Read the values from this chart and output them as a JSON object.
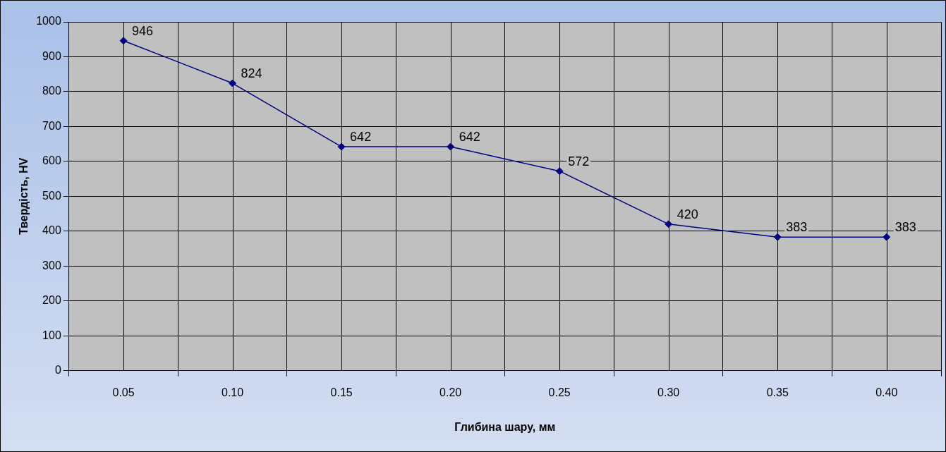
{
  "chart_data": {
    "type": "line",
    "xlabel": "Глибина шару, мм",
    "ylabel": "Твердість, HV",
    "categories": [
      "0.05",
      "0.10",
      "0.15",
      "0.20",
      "0.25",
      "0.30",
      "0.35",
      "0.40"
    ],
    "series": [
      {
        "color": "#000080",
        "values": [
          946,
          824,
          642,
          642,
          572,
          420,
          383,
          383
        ]
      }
    ],
    "ylim": [
      0,
      1000
    ],
    "yticks": [
      0,
      100,
      200,
      300,
      400,
      500,
      600,
      700,
      800,
      900,
      1000
    ],
    "grid": true,
    "marker": "diamond",
    "line_style": "solid",
    "data_labels": true,
    "legend": false
  }
}
